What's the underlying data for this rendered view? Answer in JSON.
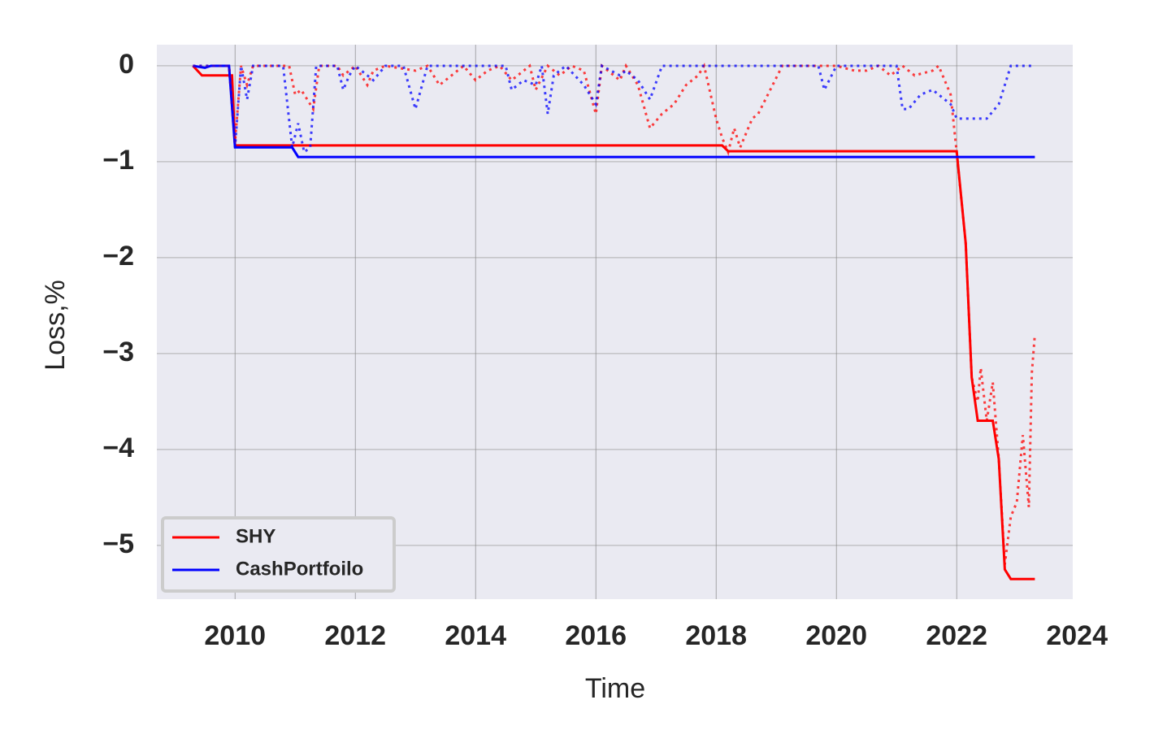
{
  "chart_data": {
    "type": "line",
    "x_label": "Time",
    "y_label": "Loss,%",
    "xlim": [
      2008.7,
      2023.93
    ],
    "ylim": [
      -5.56,
      0.22
    ],
    "xticks": [
      2010,
      2012,
      2014,
      2016,
      2018,
      2020,
      2022,
      2024
    ],
    "yticks": [
      0,
      {
        "value": -1,
        "label": "−1"
      },
      {
        "value": -2,
        "label": "−2"
      },
      {
        "value": -3,
        "label": "−3"
      },
      {
        "value": -4,
        "label": "−4"
      },
      {
        "value": -5,
        "label": "−5"
      }
    ],
    "grid": true,
    "legend": "lower left",
    "series": [
      {
        "name": "SHY",
        "color": "#ff0000",
        "style": "solid",
        "x": [
          2009.3,
          2009.45,
          2009.95,
          2010.0,
          2018.1,
          2018.2,
          2022.0,
          2022.15,
          2022.25,
          2022.35,
          2022.6,
          2022.7,
          2022.8,
          2022.9,
          2023.3
        ],
        "values": [
          0,
          -0.1,
          -0.1,
          -0.83,
          -0.83,
          -0.89,
          -0.89,
          -1.85,
          -3.25,
          -3.7,
          -3.7,
          -4.1,
          -5.25,
          -5.35,
          -5.35
        ]
      },
      {
        "name": "CashPortfoilo",
        "color": "#0000ff",
        "style": "solid",
        "x": [
          2009.3,
          2009.5,
          2009.6,
          2009.9,
          2010.0,
          2010.95,
          2011.05,
          2023.3
        ],
        "values": [
          0,
          -0.02,
          0,
          0,
          -0.85,
          -0.85,
          -0.95,
          -0.95
        ]
      },
      {
        "color": "#ff0000",
        "style": "dotted",
        "x": [
          2009.3,
          2009.5,
          2009.9,
          2010.0,
          2010.1,
          2010.2,
          2010.3,
          2010.9,
          2011.0,
          2011.1,
          2011.3,
          2011.4,
          2011.7,
          2011.8,
          2011.9,
          2012.0,
          2012.2,
          2012.3,
          2012.5,
          2013.0,
          2013.2,
          2013.4,
          2013.6,
          2013.8,
          2014.0,
          2014.2,
          2014.4,
          2014.6,
          2014.8,
          2014.9,
          2015.0,
          2015.2,
          2015.4,
          2015.6,
          2015.8,
          2016.0,
          2016.1,
          2016.4,
          2016.5,
          2016.7,
          2016.9,
          2017.1,
          2017.3,
          2017.5,
          2017.7,
          2017.8,
          2018.0,
          2018.1,
          2018.2,
          2018.3,
          2018.4,
          2018.6,
          2018.7,
          2018.9,
          2019.1,
          2019.8,
          2020.0,
          2020.3,
          2020.5,
          2020.7,
          2020.9,
          2021.1,
          2021.3,
          2021.6,
          2021.7,
          2021.9,
          2022.0,
          2022.15,
          2022.25,
          2022.35,
          2022.4,
          2022.5,
          2022.6,
          2022.7,
          2022.8,
          2022.9,
          2023.0,
          2023.1,
          2023.2,
          2023.25,
          2023.3
        ],
        "values": [
          0,
          0,
          0,
          -0.8,
          0,
          -0.2,
          0,
          0,
          -0.3,
          -0.25,
          -0.45,
          0,
          0,
          -0.1,
          -0.05,
          0,
          -0.2,
          -0.05,
          0,
          -0.05,
          0,
          -0.2,
          -0.1,
          0,
          -0.15,
          -0.05,
          0,
          -0.15,
          -0.05,
          0,
          -0.25,
          0,
          -0.1,
          0,
          -0.05,
          -0.5,
          0,
          -0.15,
          0,
          -0.2,
          -0.65,
          -0.5,
          -0.4,
          -0.2,
          -0.1,
          0,
          -0.55,
          -0.75,
          -0.9,
          -0.65,
          -0.85,
          -0.55,
          -0.5,
          -0.25,
          0,
          0,
          0,
          -0.05,
          -0.05,
          0,
          -0.1,
          0,
          -0.1,
          -0.05,
          0,
          -0.3,
          -0.9,
          -1.85,
          -3.25,
          -3.5,
          -3.15,
          -3.7,
          -3.3,
          -4.1,
          -5.2,
          -4.7,
          -4.55,
          -3.85,
          -4.6,
          -3.2,
          -2.8
        ]
      },
      {
        "color": "#0000ff",
        "style": "dotted",
        "x": [
          2009.3,
          2009.9,
          2010.0,
          2010.1,
          2010.2,
          2010.3,
          2010.8,
          2010.95,
          2011.05,
          2011.15,
          2011.25,
          2011.35,
          2011.7,
          2011.8,
          2011.9,
          2012.0,
          2012.3,
          2012.5,
          2012.8,
          2013.0,
          2013.2,
          2014.5,
          2014.6,
          2014.8,
          2015.0,
          2015.1,
          2015.2,
          2015.3,
          2015.5,
          2015.8,
          2016.0,
          2016.1,
          2016.4,
          2016.5,
          2016.7,
          2016.9,
          2017.1,
          2019.7,
          2019.8,
          2020.0,
          2021.0,
          2021.1,
          2021.2,
          2021.4,
          2021.6,
          2021.9,
          2022.0,
          2022.5,
          2022.7,
          2022.8,
          2022.9,
          2023.3
        ],
        "values": [
          0,
          0,
          -0.85,
          0,
          -0.35,
          0,
          0,
          -0.85,
          -0.6,
          -0.9,
          -0.85,
          0,
          0,
          -0.25,
          -0.1,
          0,
          -0.15,
          0,
          0,
          -0.45,
          0,
          0,
          -0.25,
          -0.15,
          -0.2,
          0,
          -0.5,
          -0.1,
          0,
          -0.2,
          -0.4,
          0,
          -0.1,
          -0.05,
          -0.15,
          -0.35,
          0,
          0,
          -0.25,
          0,
          0,
          -0.45,
          -0.45,
          -0.3,
          -0.25,
          -0.4,
          -0.55,
          -0.55,
          -0.4,
          -0.2,
          0,
          0
        ]
      }
    ]
  }
}
